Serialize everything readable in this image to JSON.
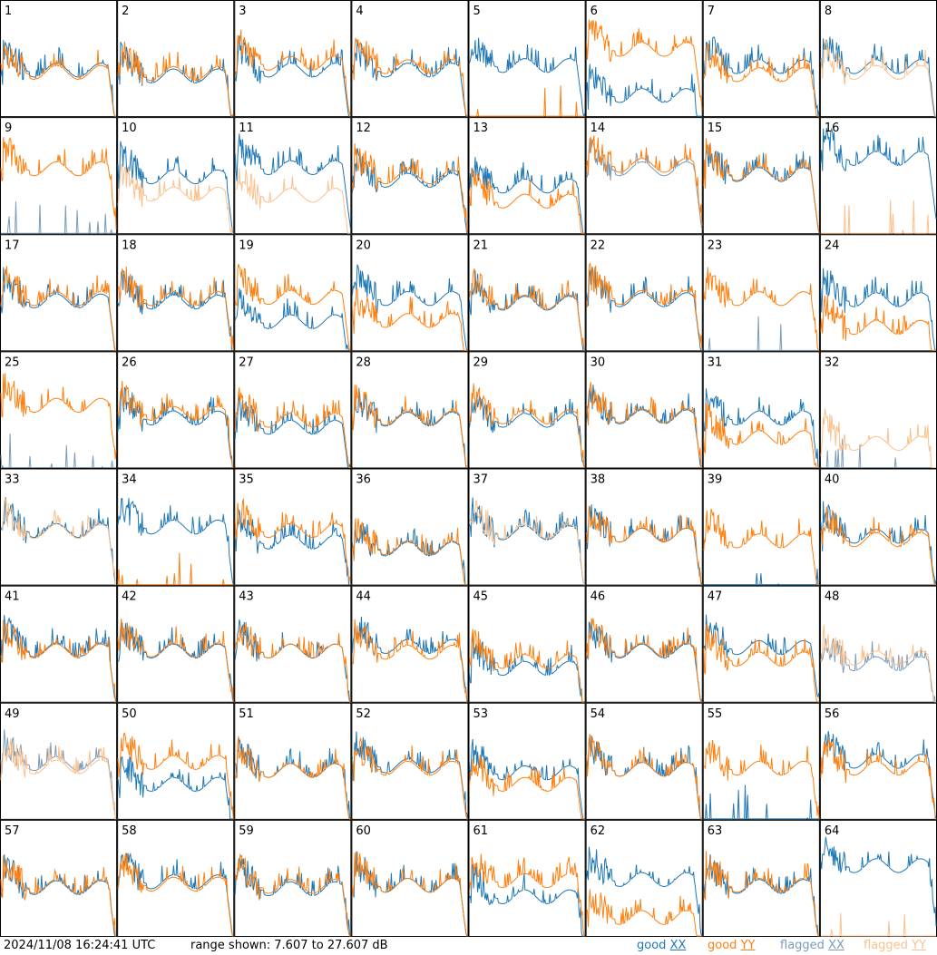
{
  "footer": {
    "timestamp": "2024/11/08 16:24:41 UTC",
    "range_text": "range shown: 7.607 to 27.607 dB",
    "legend": [
      {
        "word": "good",
        "pol": "XX",
        "color": "#1f77b4"
      },
      {
        "word": "good",
        "pol": "YY",
        "color": "#ff7f0e"
      },
      {
        "word": "flagged",
        "pol": "XX",
        "color": "#7b9bb8"
      },
      {
        "word": "flagged",
        "pol": "YY",
        "color": "#fbc08c"
      }
    ]
  },
  "chart_data": {
    "type": "line",
    "title": "",
    "xlabel": "",
    "ylabel": "",
    "ylim": [
      7.607,
      27.607
    ],
    "units": "dB",
    "grid_rows": 8,
    "grid_cols": 8,
    "colors": {
      "good_xx": "#1f77b4",
      "good_yy": "#ff7f0e",
      "flagged_xx": "#7b9bb8",
      "flagged_yy": "#fbc08c"
    },
    "panels": [
      {
        "id": "1",
        "xx": "good",
        "yy": "good",
        "xx_level": 15.6,
        "yy_level": 15.2
      },
      {
        "id": "2",
        "xx": "good",
        "yy": "good",
        "xx_level": 14.6,
        "yy_level": 15.0
      },
      {
        "id": "3",
        "xx": "good",
        "yy": "good",
        "xx_level": 15.6,
        "yy_level": 16.8
      },
      {
        "id": "4",
        "xx": "good",
        "yy": "good",
        "xx_level": 15.6,
        "yy_level": 16.2
      },
      {
        "id": "5",
        "xx": "good",
        "yy": "good",
        "xx_level": 16.4,
        "yy_level": 7.6
      },
      {
        "id": "6",
        "xx": "good",
        "yy": "good",
        "xx_level": 11.2,
        "yy_level": 19.2
      },
      {
        "id": "7",
        "xx": "good",
        "yy": "good",
        "xx_level": 16.2,
        "yy_level": 14.8
      },
      {
        "id": "8",
        "xx": "good",
        "yy": "flagged",
        "xx_level": 16.2,
        "yy_level": 15.2
      },
      {
        "id": "9",
        "xx": "flagged",
        "yy": "good",
        "xx_level": 7.6,
        "yy_level": 18.8
      },
      {
        "id": "10",
        "xx": "good",
        "yy": "flagged",
        "xx_level": 17.4,
        "yy_level": 14.4
      },
      {
        "id": "11",
        "xx": "good",
        "yy": "flagged",
        "xx_level": 19.0,
        "yy_level": 14.2
      },
      {
        "id": "12",
        "xx": "good",
        "yy": "good",
        "xx_level": 16.8,
        "yy_level": 17.4
      },
      {
        "id": "13",
        "xx": "good",
        "yy": "good",
        "xx_level": 15.8,
        "yy_level": 13.2
      },
      {
        "id": "14",
        "xx": "flagged",
        "yy": "good",
        "xx_level": 18.8,
        "yy_level": 19.4
      },
      {
        "id": "15",
        "xx": "good",
        "yy": "good",
        "xx_level": 17.8,
        "yy_level": 18.0
      },
      {
        "id": "16",
        "xx": "good",
        "yy": "flagged",
        "xx_level": 20.6,
        "yy_level": 7.6
      },
      {
        "id": "17",
        "xx": "good",
        "yy": "good",
        "xx_level": 16.2,
        "yy_level": 16.6
      },
      {
        "id": "18",
        "xx": "good",
        "yy": "good",
        "xx_level": 16.0,
        "yy_level": 16.6
      },
      {
        "id": "19",
        "xx": "good",
        "yy": "good",
        "xx_level": 12.6,
        "yy_level": 16.8
      },
      {
        "id": "20",
        "xx": "good",
        "yy": "good",
        "xx_level": 16.6,
        "yy_level": 12.8
      },
      {
        "id": "21",
        "xx": "good",
        "yy": "good",
        "xx_level": 15.8,
        "yy_level": 16.0
      },
      {
        "id": "22",
        "xx": "good",
        "yy": "good",
        "xx_level": 16.4,
        "yy_level": 16.8
      },
      {
        "id": "23",
        "xx": "flagged",
        "yy": "good",
        "xx_level": 8.0,
        "yy_level": 16.6
      },
      {
        "id": "24",
        "xx": "good",
        "yy": "good",
        "xx_level": 16.4,
        "yy_level": 11.6
      },
      {
        "id": "25",
        "xx": "flagged",
        "yy": "good",
        "xx_level": 7.6,
        "yy_level": 18.4
      },
      {
        "id": "26",
        "xx": "good",
        "yy": "good",
        "xx_level": 16.2,
        "yy_level": 17.0
      },
      {
        "id": "27",
        "xx": "good",
        "yy": "good",
        "xx_level": 14.6,
        "yy_level": 15.8
      },
      {
        "id": "28",
        "xx": "good",
        "yy": "good",
        "xx_level": 16.0,
        "yy_level": 16.2
      },
      {
        "id": "29",
        "xx": "good",
        "yy": "good",
        "xx_level": 15.8,
        "yy_level": 16.4
      },
      {
        "id": "30",
        "xx": "good",
        "yy": "good",
        "xx_level": 16.4,
        "yy_level": 16.6
      },
      {
        "id": "31",
        "xx": "good",
        "yy": "good",
        "xx_level": 16.2,
        "yy_level": 12.8
      },
      {
        "id": "32",
        "xx": "flagged",
        "yy": "flagged",
        "xx_level": 7.6,
        "yy_level": 11.8
      },
      {
        "id": "33",
        "xx": "good",
        "yy": "flagged",
        "xx_level": 17.0,
        "yy_level": 16.8
      },
      {
        "id": "34",
        "xx": "good",
        "yy": "good",
        "xx_level": 17.6,
        "yy_level": 7.6
      },
      {
        "id": "35",
        "xx": "good",
        "yy": "good",
        "xx_level": 15.0,
        "yy_level": 17.0
      },
      {
        "id": "36",
        "xx": "good",
        "yy": "good",
        "xx_level": 13.8,
        "yy_level": 14.0
      },
      {
        "id": "37",
        "xx": "good",
        "yy": "flagged",
        "xx_level": 16.6,
        "yy_level": 16.8
      },
      {
        "id": "38",
        "xx": "good",
        "yy": "good",
        "xx_level": 16.2,
        "yy_level": 16.2
      },
      {
        "id": "39",
        "xx": "good",
        "yy": "good",
        "xx_level": 7.6,
        "yy_level": 15.2
      },
      {
        "id": "40",
        "xx": "good",
        "yy": "good",
        "xx_level": 16.0,
        "yy_level": 15.4
      },
      {
        "id": "41",
        "xx": "good",
        "yy": "good",
        "xx_level": 16.6,
        "yy_level": 16.4
      },
      {
        "id": "42",
        "xx": "good",
        "yy": "good",
        "xx_level": 16.4,
        "yy_level": 16.6
      },
      {
        "id": "43",
        "xx": "good",
        "yy": "good",
        "xx_level": 16.4,
        "yy_level": 16.4
      },
      {
        "id": "44",
        "xx": "good",
        "yy": "good",
        "xx_level": 17.2,
        "yy_level": 16.2
      },
      {
        "id": "45",
        "xx": "good",
        "yy": "good",
        "xx_level": 13.4,
        "yy_level": 14.6
      },
      {
        "id": "46",
        "xx": "good",
        "yy": "good",
        "xx_level": 16.4,
        "yy_level": 16.6
      },
      {
        "id": "47",
        "xx": "good",
        "yy": "good",
        "xx_level": 17.0,
        "yy_level": 15.0
      },
      {
        "id": "48",
        "xx": "flagged",
        "yy": "flagged",
        "xx_level": 14.2,
        "yy_level": 15.2
      },
      {
        "id": "49",
        "xx": "flagged",
        "yy": "flagged",
        "xx_level": 17.2,
        "yy_level": 16.6
      },
      {
        "id": "50",
        "xx": "good",
        "yy": "good",
        "xx_level": 13.6,
        "yy_level": 17.4
      },
      {
        "id": "51",
        "xx": "good",
        "yy": "good",
        "xx_level": 16.0,
        "yy_level": 16.0
      },
      {
        "id": "52",
        "xx": "good",
        "yy": "good",
        "xx_level": 16.8,
        "yy_level": 16.4
      },
      {
        "id": "53",
        "xx": "good",
        "yy": "good",
        "xx_level": 15.6,
        "yy_level": 13.6
      },
      {
        "id": "54",
        "xx": "good",
        "yy": "good",
        "xx_level": 16.2,
        "yy_level": 16.2
      },
      {
        "id": "55",
        "xx": "good",
        "yy": "good",
        "xx_level": 7.6,
        "yy_level": 16.4
      },
      {
        "id": "56",
        "xx": "good",
        "yy": "good",
        "xx_level": 17.6,
        "yy_level": 16.4
      },
      {
        "id": "57",
        "xx": "good",
        "yy": "good",
        "xx_level": 16.0,
        "yy_level": 16.2
      },
      {
        "id": "58",
        "xx": "good",
        "yy": "good",
        "xx_level": 17.0,
        "yy_level": 16.6
      },
      {
        "id": "59",
        "xx": "good",
        "yy": "good",
        "xx_level": 15.8,
        "yy_level": 16.2
      },
      {
        "id": "60",
        "xx": "good",
        "yy": "good",
        "xx_level": 16.4,
        "yy_level": 16.4
      },
      {
        "id": "61",
        "xx": "good",
        "yy": "good",
        "xx_level": 14.4,
        "yy_level": 17.2
      },
      {
        "id": "62",
        "xx": "good",
        "yy": "good",
        "xx_level": 17.4,
        "yy_level": 10.8
      },
      {
        "id": "63",
        "xx": "good",
        "yy": "good",
        "xx_level": 16.2,
        "yy_level": 16.4
      },
      {
        "id": "64",
        "xx": "good",
        "yy": "flagged",
        "xx_level": 19.8,
        "yy_level": 7.6
      }
    ]
  }
}
